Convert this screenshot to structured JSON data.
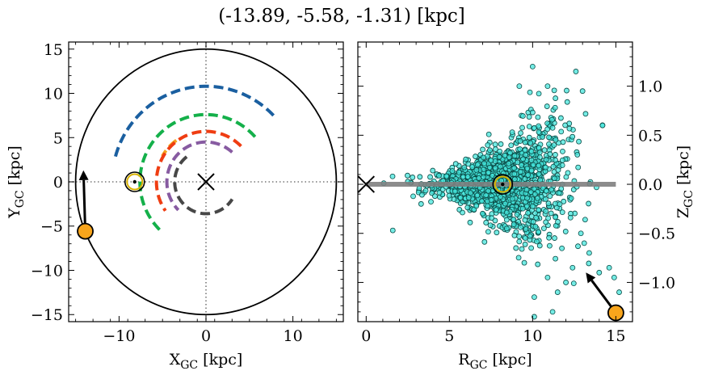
{
  "figure": {
    "title": "(-13.89, -5.58, -1.31) [kpc]"
  },
  "chart_data": [
    {
      "type": "scatter",
      "panel": "left",
      "xlabel": "X",
      "xlabel_sub": "GC",
      "xlabel_unit": " [kpc]",
      "ylabel": "Y",
      "ylabel_sub": "GC",
      "ylabel_unit": " [kpc]",
      "xlim": [
        -15.8,
        15.8
      ],
      "ylim": [
        -15.8,
        15.8
      ],
      "xticks": [
        -10,
        0,
        10
      ],
      "xtick_labels": [
        "−10",
        "0",
        "10"
      ],
      "yticks": [
        -15,
        -10,
        -5,
        0,
        5,
        10,
        15
      ],
      "ytick_labels": [
        "−15",
        "−10",
        "−5",
        "0",
        "5",
        "10",
        "15"
      ],
      "grid": false,
      "outer_circle_radius": 15,
      "galactic_center": [
        0,
        0
      ],
      "sun": [
        -8.2,
        0
      ],
      "object": [
        -13.89,
        -5.58
      ],
      "arrow_tip": [
        -14.1,
        1.3
      ],
      "spiral_arms": [
        {
          "color": "#1a5fa0",
          "radius": 10.8,
          "theta_start": 44,
          "theta_end": 166
        },
        {
          "color": "#14b04a",
          "radius": 7.6,
          "theta_start": 42,
          "theta_end": 228
        },
        {
          "color": "#f5a21d",
          "radius": 5.8,
          "theta_start": 126,
          "theta_end": 150
        },
        {
          "color": "#ef3d12",
          "radius": 5.7,
          "theta_start": 45,
          "theta_end": 215
        },
        {
          "color": "#875ba1",
          "radius": 4.5,
          "theta_start": 48,
          "theta_end": 225
        },
        {
          "color": "#474747",
          "radius": 3.6,
          "theta_start": 128,
          "theta_end": 327
        }
      ]
    },
    {
      "type": "scatter",
      "panel": "right",
      "xlabel": "R",
      "xlabel_sub": "GC",
      "xlabel_unit": " [kpc]",
      "ylabel": "Z",
      "ylabel_sub": "GC",
      "ylabel_unit": " [kpc]",
      "xlim": [
        -0.5,
        16
      ],
      "ylim": [
        -1.4,
        1.45
      ],
      "xticks": [
        0,
        5,
        10,
        15
      ],
      "xtick_labels": [
        "0",
        "5",
        "10",
        "15"
      ],
      "yticks": [
        -1.0,
        -0.5,
        0.0,
        0.5,
        1.0
      ],
      "ytick_labels": [
        "−1.0",
        "−0.5",
        "0.0",
        "0.5",
        "1.0"
      ],
      "disk_line": {
        "x": [
          0,
          15
        ],
        "y": 0
      },
      "galactic_center": [
        0,
        0
      ],
      "sun": [
        8.2,
        0
      ],
      "object": [
        15.0,
        -1.31
      ],
      "arrow_tip": [
        13.2,
        -0.9
      ],
      "star_cloud": {
        "count": 1500,
        "x_range": [
          1,
          15
        ],
        "peak_x": 8.2,
        "z_spread": 0.2
      },
      "outlier_points": [
        [
          10.0,
          1.2
        ],
        [
          12.6,
          1.15
        ],
        [
          10.9,
          1.0
        ],
        [
          13.0,
          0.95
        ],
        [
          9.2,
          1.0
        ],
        [
          14.2,
          0.6
        ],
        [
          14.9,
          -0.95
        ],
        [
          15.2,
          -1.1
        ],
        [
          14.6,
          -0.85
        ],
        [
          14.0,
          -0.9
        ],
        [
          13.4,
          -0.7
        ],
        [
          13.1,
          -0.6
        ],
        [
          12.4,
          -0.85
        ],
        [
          12.0,
          -1.0
        ],
        [
          11.5,
          -1.1
        ],
        [
          10.9,
          -0.95
        ],
        [
          10.1,
          -1.15
        ],
        [
          9.5,
          -0.8
        ],
        [
          9.0,
          -0.65
        ],
        [
          1.6,
          -0.47
        ],
        [
          3.3,
          -0.2
        ],
        [
          4.0,
          0.14
        ],
        [
          10.1,
          -1.35
        ],
        [
          12.9,
          -0.5
        ],
        [
          11.2,
          -1.3
        ]
      ]
    }
  ]
}
